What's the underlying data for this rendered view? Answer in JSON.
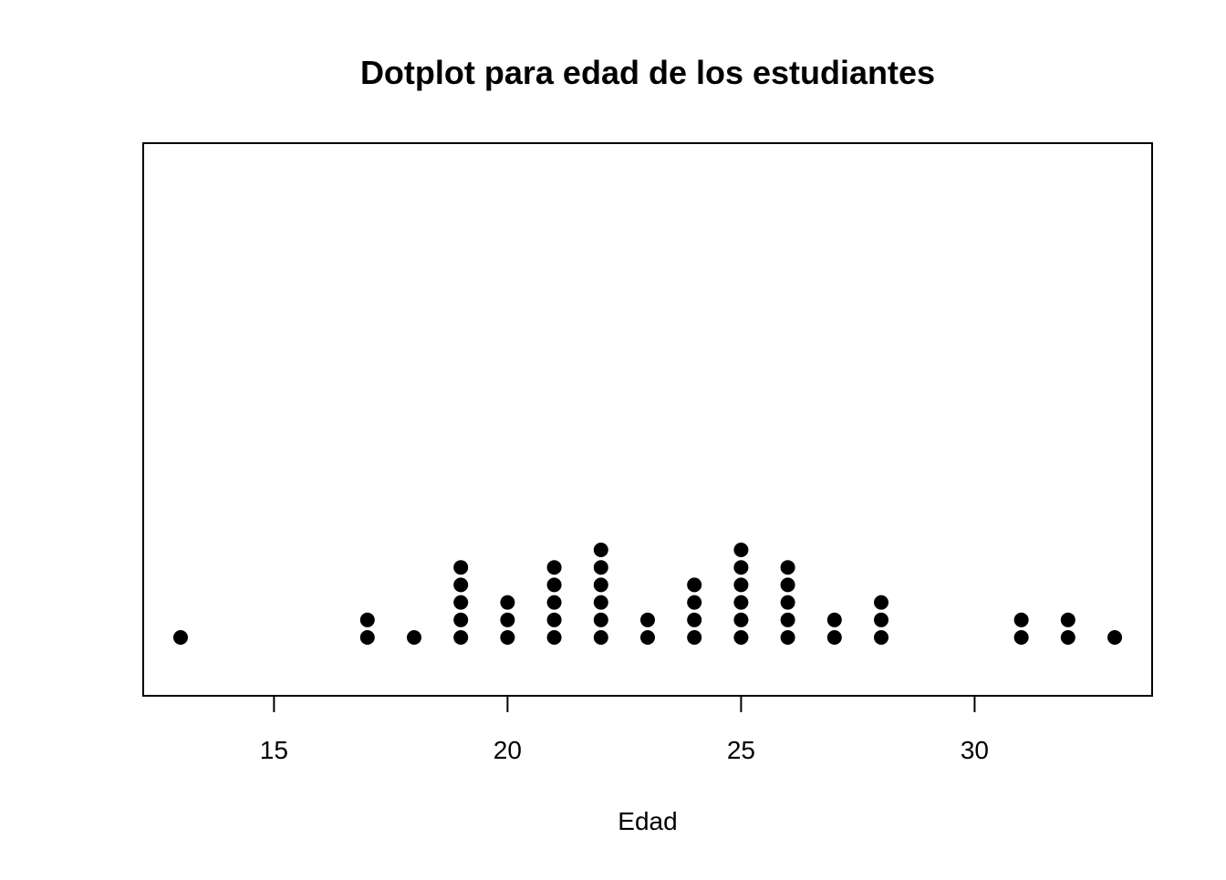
{
  "chart_data": {
    "type": "scatter",
    "subtype": "dotplot",
    "title": "Dotplot para edad de los estudiantes",
    "xlabel": "Edad",
    "ylabel": "",
    "xlim": [
      12.2,
      33.8
    ],
    "x_ticks": [
      15,
      20,
      25,
      30
    ],
    "x_tick_labels": [
      "15",
      "20",
      "25",
      "30"
    ],
    "y_axis_shown": false,
    "grid": false,
    "legend": "none",
    "box": true,
    "point_color": "#000000",
    "points": [
      {
        "x": 13,
        "count": 1
      },
      {
        "x": 17,
        "count": 2
      },
      {
        "x": 18,
        "count": 1
      },
      {
        "x": 19,
        "count": 5
      },
      {
        "x": 20,
        "count": 3
      },
      {
        "x": 21,
        "count": 5
      },
      {
        "x": 22,
        "count": 6
      },
      {
        "x": 23,
        "count": 2
      },
      {
        "x": 24,
        "count": 4
      },
      {
        "x": 25,
        "count": 6
      },
      {
        "x": 26,
        "count": 5
      },
      {
        "x": 27,
        "count": 2
      },
      {
        "x": 28,
        "count": 3
      },
      {
        "x": 31,
        "count": 2
      },
      {
        "x": 32,
        "count": 2
      },
      {
        "x": 33,
        "count": 1
      }
    ]
  }
}
